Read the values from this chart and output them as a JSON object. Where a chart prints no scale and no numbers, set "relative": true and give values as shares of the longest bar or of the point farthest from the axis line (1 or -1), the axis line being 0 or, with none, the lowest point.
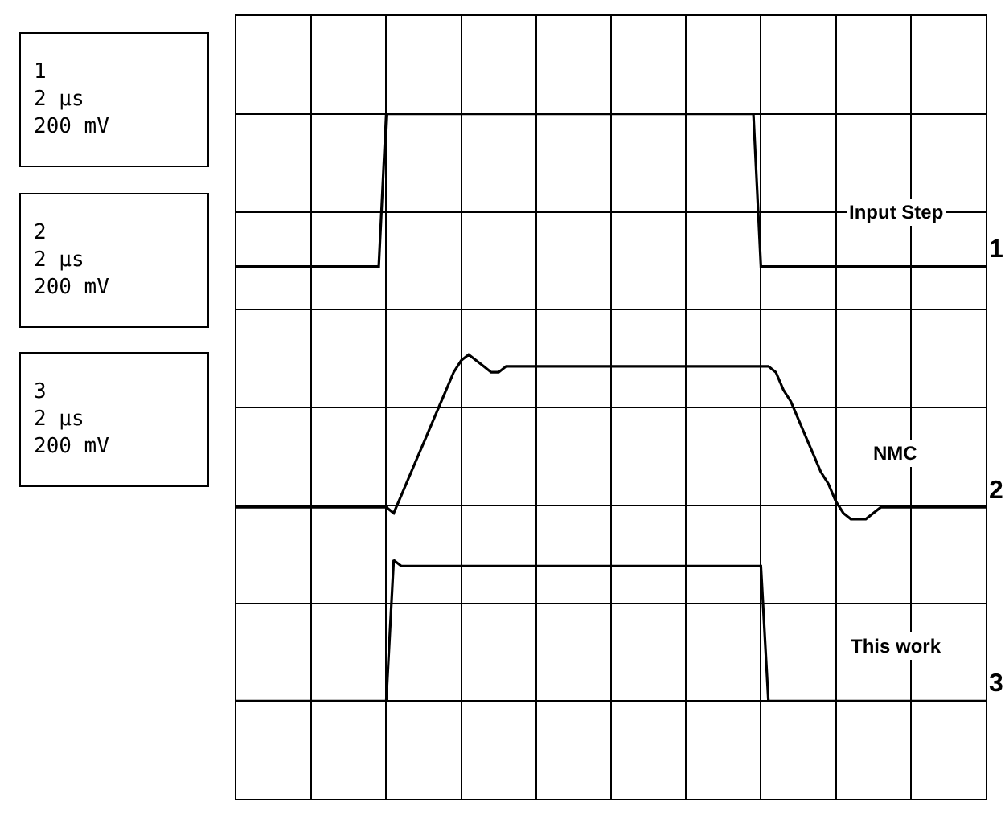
{
  "chart_data": {
    "type": "line",
    "relative": true,
    "grid": true,
    "legend": false,
    "marker": "none",
    "line_style": "solid",
    "categories": [
      null,
      null,
      null,
      null,
      null,
      null,
      null,
      null,
      null,
      null,
      null,
      null,
      null,
      null,
      null,
      null,
      null,
      null,
      null,
      null,
      null,
      null,
      null,
      null,
      null,
      null,
      null,
      null,
      null,
      null,
      null,
      null,
      null,
      null,
      null,
      null,
      null,
      null,
      null,
      null,
      null,
      null,
      null,
      null,
      null,
      null,
      null,
      null,
      null,
      null,
      null,
      null,
      null,
      null,
      null,
      null,
      null,
      null,
      null,
      null,
      null,
      null,
      null,
      null,
      null,
      null,
      null,
      null,
      null,
      null,
      null,
      null,
      null,
      null,
      null,
      null,
      null,
      null,
      null,
      null,
      null,
      null,
      null,
      null,
      null,
      null,
      null,
      null,
      null,
      null,
      null,
      null,
      null,
      null,
      null,
      null,
      null,
      null,
      null,
      null,
      null
    ],
    "series": [
      {
        "name": "Input Step",
        "color": "#000000",
        "values": [
          0.74,
          0.74,
          0.74,
          0.74,
          0.74,
          0.74,
          0.74,
          0.74,
          0.74,
          0.74,
          0.74,
          0.74,
          0.74,
          0.74,
          0.74,
          0.74,
          0.74,
          0.74,
          0.74,
          0.74,
          1,
          1,
          1,
          1,
          1,
          1,
          1,
          1,
          1,
          1,
          1,
          1,
          1,
          1,
          1,
          1,
          1,
          1,
          1,
          1,
          1,
          1,
          1,
          1,
          1,
          1,
          1,
          1,
          1,
          1,
          1,
          1,
          1,
          1,
          1,
          1,
          1,
          1,
          1,
          1,
          1,
          1,
          1,
          1,
          1,
          1,
          1,
          1,
          1,
          1,
          0.74,
          0.74,
          0.74,
          0.74,
          0.74,
          0.74,
          0.74,
          0.74,
          0.74,
          0.74,
          0.74,
          0.74,
          0.74,
          0.74,
          0.74,
          0.74,
          0.74,
          0.74,
          0.74,
          0.74,
          0.74,
          0.74,
          0.74,
          0.74,
          0.74,
          0.74,
          0.74,
          0.74,
          0.74,
          0.74,
          0.74
        ]
      },
      {
        "name": "NMC",
        "color": "#000000",
        "values": [
          0.33,
          0.33,
          0.33,
          0.33,
          0.33,
          0.33,
          0.33,
          0.33,
          0.33,
          0.33,
          0.33,
          0.33,
          0.33,
          0.33,
          0.33,
          0.33,
          0.33,
          0.33,
          0.33,
          0.33,
          0.33,
          0.32,
          0.35,
          0.38,
          0.41,
          0.44,
          0.47,
          0.5,
          0.53,
          0.56,
          0.58,
          0.59,
          0.58,
          0.57,
          0.56,
          0.56,
          0.57,
          0.57,
          0.57,
          0.57,
          0.57,
          0.57,
          0.57,
          0.57,
          0.57,
          0.57,
          0.57,
          0.57,
          0.57,
          0.57,
          0.57,
          0.57,
          0.57,
          0.57,
          0.57,
          0.57,
          0.57,
          0.57,
          0.57,
          0.57,
          0.57,
          0.57,
          0.57,
          0.57,
          0.57,
          0.57,
          0.57,
          0.57,
          0.57,
          0.57,
          0.57,
          0.57,
          0.56,
          0.53,
          0.51,
          0.48,
          0.45,
          0.42,
          0.39,
          0.37,
          0.34,
          0.32,
          0.31,
          0.31,
          0.31,
          0.32,
          0.33,
          0.33,
          0.33,
          0.33,
          0.33,
          0.33,
          0.33,
          0.33,
          0.33,
          0.33,
          0.33,
          0.33,
          0.33,
          0.33,
          0.33
        ]
      },
      {
        "name": "This work",
        "color": "#000000",
        "values": [
          0,
          0,
          0,
          0,
          0,
          0,
          0,
          0,
          0,
          0,
          0,
          0,
          0,
          0,
          0,
          0,
          0,
          0,
          0,
          0,
          0,
          0.24,
          0.23,
          0.23,
          0.23,
          0.23,
          0.23,
          0.23,
          0.23,
          0.23,
          0.23,
          0.23,
          0.23,
          0.23,
          0.23,
          0.23,
          0.23,
          0.23,
          0.23,
          0.23,
          0.23,
          0.23,
          0.23,
          0.23,
          0.23,
          0.23,
          0.23,
          0.23,
          0.23,
          0.23,
          0.23,
          0.23,
          0.23,
          0.23,
          0.23,
          0.23,
          0.23,
          0.23,
          0.23,
          0.23,
          0.23,
          0.23,
          0.23,
          0.23,
          0.23,
          0.23,
          0.23,
          0.23,
          0.23,
          0.23,
          0.23,
          0,
          0,
          0,
          0,
          0,
          0,
          0,
          0,
          0,
          0,
          0,
          0,
          0,
          0,
          0,
          0,
          0,
          0,
          0,
          0,
          0,
          0,
          0,
          0,
          0,
          0,
          0,
          0,
          0,
          0
        ]
      }
    ],
    "annotations": [
      "1\n2 µs\n200 mV",
      "2\n2 µs\n200 mV",
      "3\n2 µs\n200 mV",
      "1",
      "2",
      "3"
    ]
  }
}
